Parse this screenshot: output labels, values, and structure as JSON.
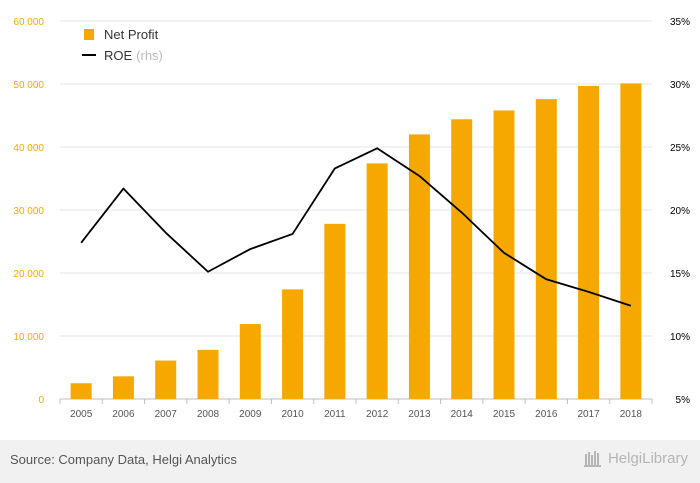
{
  "chart_data": {
    "type": "bar",
    "categories": [
      "2005",
      "2006",
      "2007",
      "2008",
      "2009",
      "2010",
      "2011",
      "2012",
      "2013",
      "2014",
      "2015",
      "2016",
      "2017",
      "2018"
    ],
    "series": [
      {
        "name": "Net Profit",
        "type": "bar",
        "axis": "left",
        "color": "#f7a800",
        "values": [
          2500,
          3600,
          6100,
          7800,
          11900,
          17400,
          27800,
          37400,
          42000,
          44400,
          45800,
          47600,
          49700,
          50100
        ]
      },
      {
        "name": "ROE",
        "name_suffix": "(rhs)",
        "type": "line",
        "axis": "right",
        "color": "#000000",
        "values": [
          17.4,
          21.7,
          18.2,
          15.1,
          16.9,
          18.1,
          23.3,
          24.9,
          22.7,
          19.8,
          16.6,
          14.5,
          13.5,
          12.4
        ]
      }
    ],
    "left_axis": {
      "ylim": [
        0,
        60000
      ],
      "ticks": [
        0,
        10000,
        20000,
        30000,
        40000,
        50000,
        60000
      ],
      "tick_labels": [
        "0",
        "10 000",
        "20 000",
        "30 000",
        "40 000",
        "50 000",
        "60 000"
      ],
      "color": "#f7a800"
    },
    "right_axis": {
      "ylim": [
        5,
        35
      ],
      "ticks": [
        5,
        10,
        15,
        20,
        25,
        30,
        35
      ],
      "tick_labels": [
        "5%",
        "10%",
        "15%",
        "20%",
        "25%",
        "30%",
        "35%"
      ],
      "color": "#000000"
    },
    "grid": true,
    "legend_position": "top-left"
  },
  "footer": {
    "source": "Source: Company Data, Helgi Analytics",
    "brand": "HelgiLibrary"
  },
  "icons": {
    "brand_icon": "library-logo-icon"
  }
}
